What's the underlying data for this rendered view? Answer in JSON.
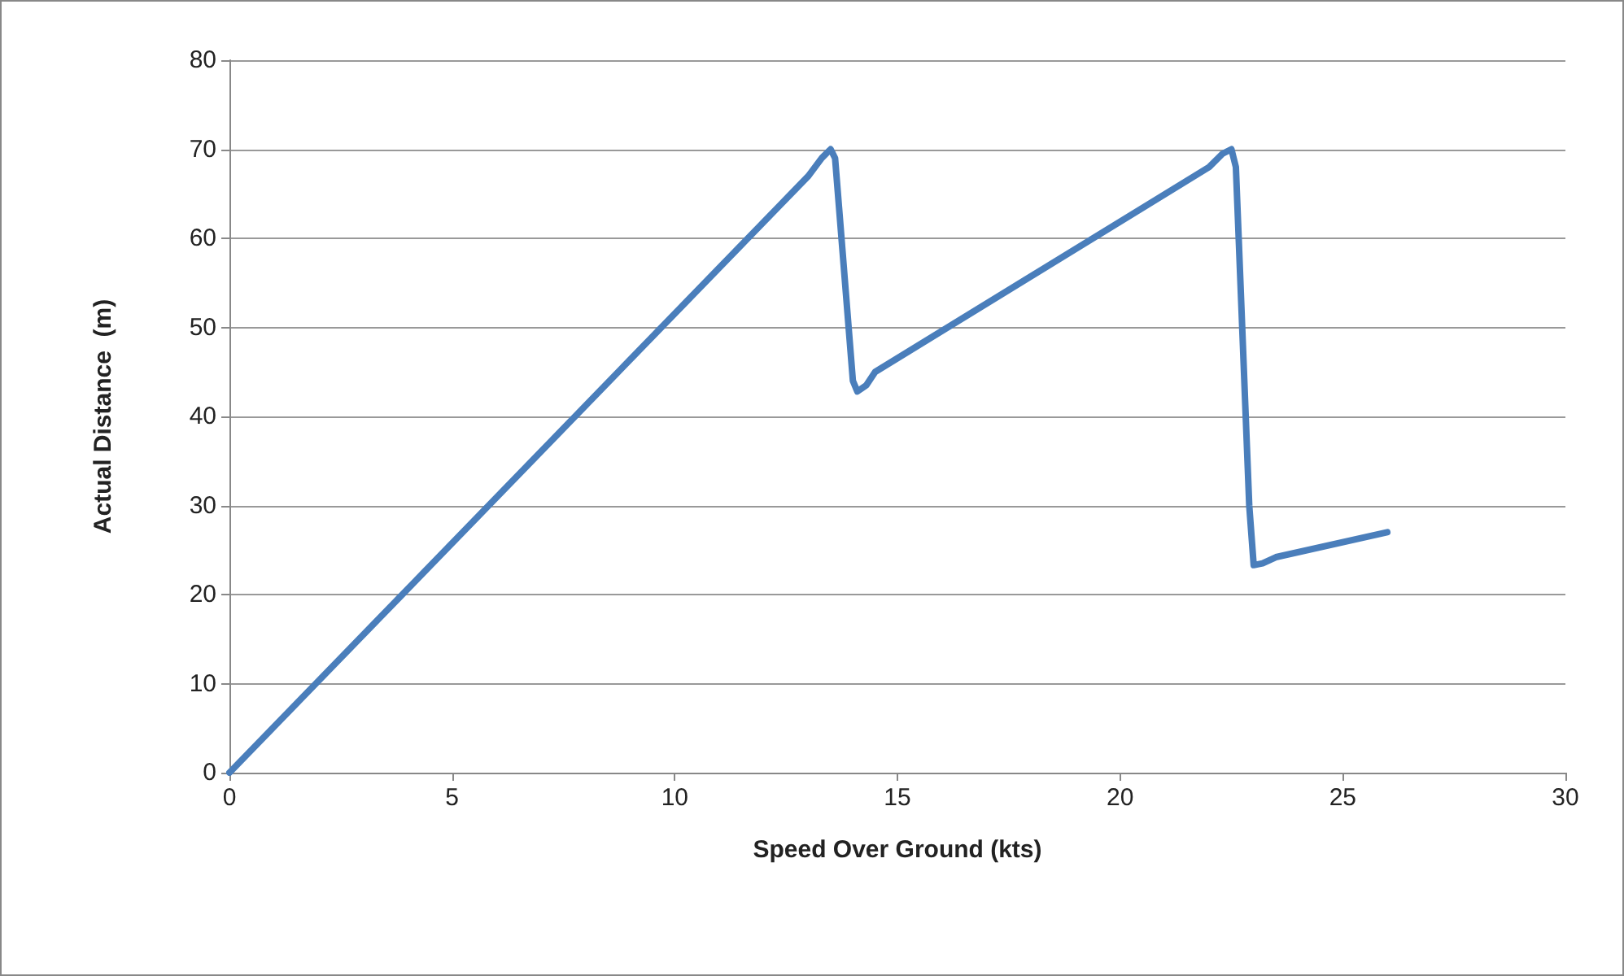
{
  "chart_data": {
    "type": "line",
    "xlabel": "Speed Over Ground (kts)",
    "ylabel": "Actual Distance  (m)",
    "series": [
      {
        "color": "#4a7ebb",
        "x": [
          0,
          13,
          13.3,
          13.5,
          13.6,
          14.0,
          14.1,
          14.3,
          14.5,
          22.0,
          22.3,
          22.5,
          22.6,
          22.9,
          23.0,
          23.2,
          23.5,
          26
        ],
        "values": [
          0,
          67,
          69,
          70,
          69,
          44,
          42.8,
          43.5,
          45,
          68,
          69.5,
          70,
          68,
          30,
          23.3,
          23.5,
          24.2,
          27
        ]
      }
    ],
    "xlim": [
      0,
      30
    ],
    "xticks": [
      0,
      5,
      10,
      15,
      20,
      25,
      30
    ],
    "ylim": [
      0,
      80
    ],
    "yticks": [
      0,
      10,
      20,
      30,
      40,
      50,
      60,
      70,
      80
    ],
    "grid": "y",
    "marker": "none",
    "line_style": "solid"
  }
}
